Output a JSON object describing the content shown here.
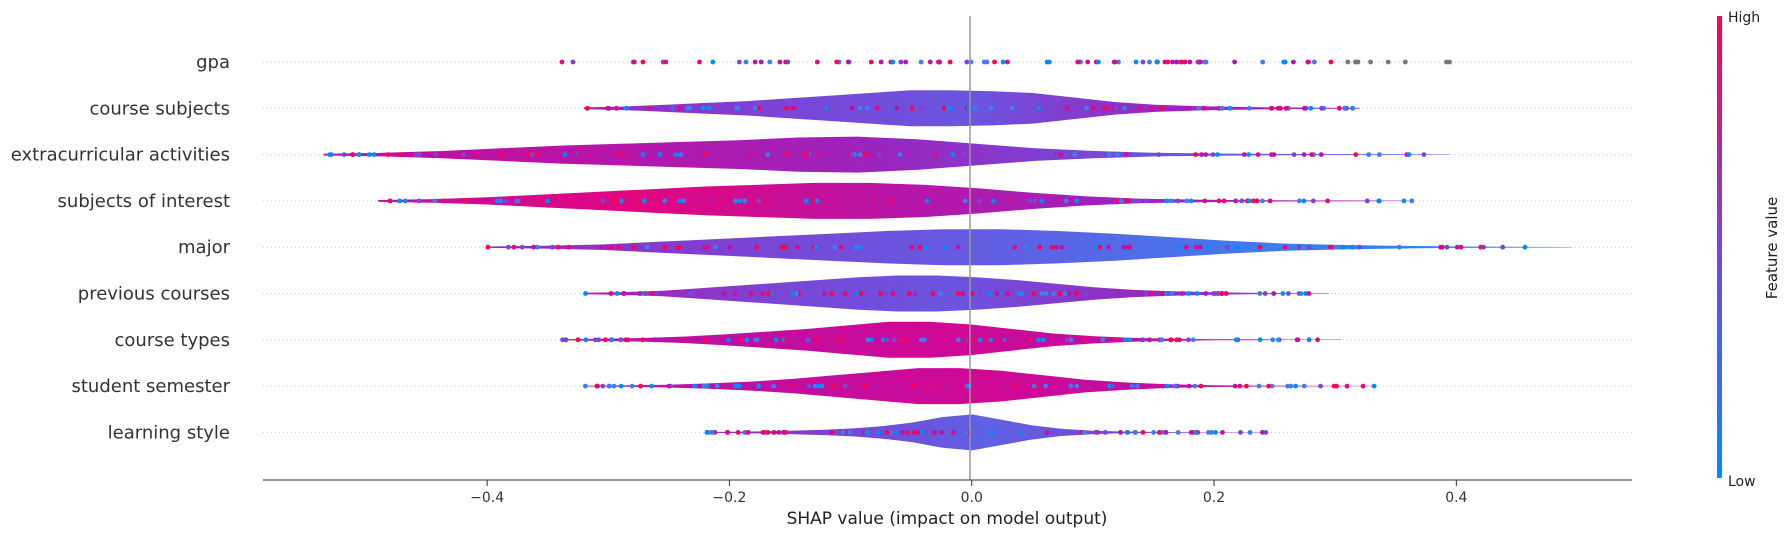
{
  "chart_data": {
    "type": "scatter",
    "subtype": "shap-violin-summary",
    "title": "",
    "xlabel": "SHAP value (impact on model output)",
    "ylabel": "",
    "xlim": [
      -0.585,
      0.545
    ],
    "xticks": [
      -0.4,
      -0.2,
      0.0,
      0.2,
      0.4
    ],
    "xtick_labels": [
      "−0.4",
      "−0.2",
      "0.0",
      "0.2",
      "0.4"
    ],
    "features": [
      {
        "name": "gpa",
        "min": -0.345,
        "max": 0.415,
        "density": [
          0,
          0,
          0,
          0,
          0,
          0,
          0,
          0,
          0,
          0,
          0,
          0,
          0,
          0,
          0,
          0,
          0,
          0,
          0,
          0
        ],
        "body_colors": [
          "#8a2cc4"
        ]
      },
      {
        "name": "course subjects",
        "min": -0.32,
        "max": 0.32,
        "density": [
          0.05,
          0.1,
          0.2,
          0.3,
          0.4,
          0.55,
          0.7,
          0.85,
          1.0,
          1.0,
          0.95,
          0.85,
          0.6,
          0.35,
          0.2,
          0.12,
          0.08,
          0.05,
          0.03,
          0.02
        ],
        "body_colors": [
          "#9a25be",
          "#7a45d6",
          "#6a55e0",
          "#9a25be",
          "#b815a8"
        ]
      },
      {
        "name": "extracurricular activities",
        "min": -0.535,
        "max": 0.395,
        "density": [
          0.05,
          0.1,
          0.2,
          0.35,
          0.5,
          0.6,
          0.7,
          0.8,
          0.95,
          1.0,
          0.85,
          0.6,
          0.35,
          0.2,
          0.1,
          0.06,
          0.04,
          0.03,
          0.02,
          0.01
        ],
        "body_colors": [
          "#c00ea0",
          "#b815a8",
          "#9a25be",
          "#6a55e0",
          "#5e62e4"
        ]
      },
      {
        "name": "subjects of interest",
        "min": -0.49,
        "max": 0.365,
        "density": [
          0.05,
          0.1,
          0.2,
          0.35,
          0.5,
          0.65,
          0.8,
          0.9,
          1.0,
          1.0,
          0.9,
          0.7,
          0.45,
          0.25,
          0.12,
          0.07,
          0.04,
          0.03,
          0.02,
          0.01
        ],
        "body_colors": [
          "#c00ea0",
          "#e2067f",
          "#b815a8",
          "#9a25be",
          "#b815a8"
        ]
      },
      {
        "name": "major",
        "min": -0.4,
        "max": 0.495,
        "density": [
          0.04,
          0.08,
          0.15,
          0.3,
          0.45,
          0.6,
          0.75,
          0.9,
          1.0,
          1.0,
          0.9,
          0.75,
          0.55,
          0.35,
          0.2,
          0.12,
          0.07,
          0.04,
          0.02,
          0.01
        ],
        "body_colors": [
          "#9a25be",
          "#7a45d6",
          "#5e62e4",
          "#3a7ef0",
          "#1a88f0"
        ]
      },
      {
        "name": "previous courses",
        "min": -0.32,
        "max": 0.295,
        "density": [
          0.04,
          0.08,
          0.15,
          0.3,
          0.45,
          0.6,
          0.75,
          0.9,
          1.0,
          1.0,
          0.9,
          0.75,
          0.55,
          0.35,
          0.2,
          0.12,
          0.07,
          0.04,
          0.02,
          0.01
        ],
        "body_colors": [
          "#b815a8",
          "#7a45d6",
          "#6a55e0",
          "#9a25be",
          "#6a55e0"
        ]
      },
      {
        "name": "course types",
        "min": -0.34,
        "max": 0.305,
        "density": [
          0.03,
          0.06,
          0.1,
          0.18,
          0.3,
          0.45,
          0.6,
          0.8,
          1.0,
          1.0,
          0.85,
          0.6,
          0.35,
          0.2,
          0.1,
          0.05,
          0.03,
          0.02,
          0.01,
          0.01
        ],
        "body_colors": [
          "#b815a8",
          "#c00ea0",
          "#d00896",
          "#c00ea0",
          "#b815a8"
        ]
      },
      {
        "name": "student semester",
        "min": -0.32,
        "max": 0.335,
        "density": [
          0.02,
          0.04,
          0.08,
          0.15,
          0.25,
          0.4,
          0.6,
          0.8,
          1.0,
          1.0,
          0.85,
          0.6,
          0.35,
          0.2,
          0.1,
          0.05,
          0.03,
          0.02,
          0.01,
          0.01
        ],
        "body_colors": [
          "#b815a8",
          "#c00ea0",
          "#d00896",
          "#c00ea0",
          "#b815a8"
        ]
      },
      {
        "name": "learning style",
        "min": -0.22,
        "max": 0.245,
        "density": [
          0.02,
          0.04,
          0.06,
          0.1,
          0.15,
          0.22,
          0.35,
          0.55,
          0.85,
          1.0,
          0.7,
          0.4,
          0.2,
          0.1,
          0.05,
          0.03,
          0.02,
          0.01,
          0.01,
          0.01
        ],
        "body_colors": [
          "#9a25be",
          "#7a45d6",
          "#5e62e4",
          "#7a45d6",
          "#9a25be"
        ]
      }
    ],
    "colorbar": {
      "label": "Feature value",
      "high_label": "High",
      "low_label": "Low",
      "high_color": "#ff0052",
      "low_color": "#008bfb"
    },
    "colors": {
      "zero_line": "#999999",
      "axis": "#333333",
      "missing_value": "#777777"
    }
  }
}
